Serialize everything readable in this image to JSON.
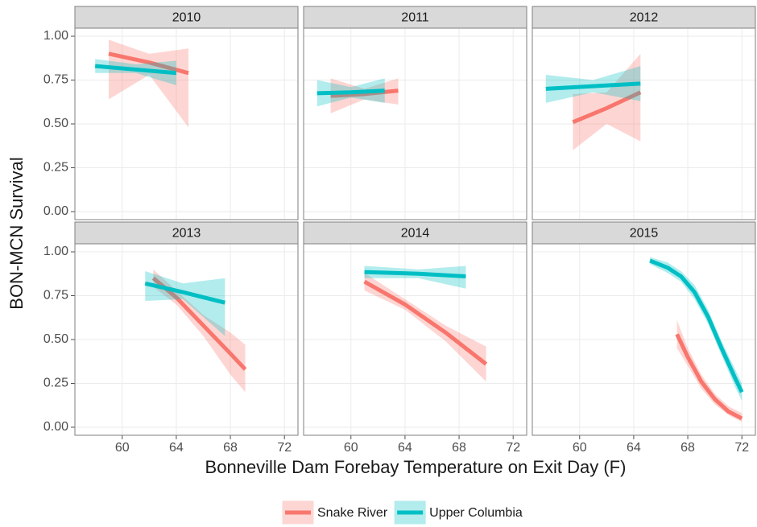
{
  "chart_data": {
    "type": "line",
    "xlabel": "Bonneville Dam Forebay Temperature on Exit Day (F)",
    "ylabel": "BON-MCN Survival",
    "xlim": [
      56.5,
      73
    ],
    "xticks": [
      60,
      64,
      68,
      72
    ],
    "ylim": [
      -0.046,
      1.046
    ],
    "yticks": [
      {
        "value": 0,
        "label": "0.00"
      },
      {
        "value": 0.25,
        "label": "0.25"
      },
      {
        "value": 0.5,
        "label": "0.50"
      },
      {
        "value": 0.75,
        "label": "0.75"
      },
      {
        "value": 1,
        "label": "1.00"
      }
    ],
    "grid": true,
    "legend": "bottom",
    "series": [
      {
        "name": "Snake River",
        "color": "#f8766d"
      },
      {
        "name": "Upper Columbia",
        "color": "#00bfc4"
      }
    ],
    "facets": [
      {
        "title": "2010",
        "lines": [
          {
            "x": [
              59,
              62,
              64.9
            ],
            "values": [
              0.9,
              0.85,
              0.79
            ],
            "lower": [
              0.64,
              0.78,
              0.48
            ],
            "upper": [
              0.98,
              0.9,
              0.93
            ]
          },
          {
            "x": [
              58,
              61,
              64
            ],
            "values": [
              0.83,
              0.81,
              0.79
            ],
            "lower": [
              0.79,
              0.79,
              0.72
            ],
            "upper": [
              0.87,
              0.84,
              0.86
            ]
          }
        ]
      },
      {
        "title": "2011",
        "lines": [
          {
            "x": [
              58.5,
              61,
              63.5
            ],
            "values": [
              0.66,
              0.67,
              0.69
            ],
            "lower": [
              0.56,
              0.64,
              0.61
            ],
            "upper": [
              0.76,
              0.7,
              0.76
            ]
          },
          {
            "x": [
              57.5,
              60,
              62.5
            ],
            "values": [
              0.675,
              0.68,
              0.69
            ],
            "lower": [
              0.6,
              0.65,
              0.62
            ],
            "upper": [
              0.75,
              0.71,
              0.76
            ]
          }
        ]
      },
      {
        "title": "2012",
        "lines": [
          {
            "x": [
              59.5,
              62,
              64.5
            ],
            "values": [
              0.51,
              0.59,
              0.68
            ],
            "lower": [
              0.35,
              0.5,
              0.4
            ],
            "upper": [
              0.67,
              0.68,
              0.9
            ]
          },
          {
            "x": [
              57.5,
              61,
              64.5
            ],
            "values": [
              0.7,
              0.715,
              0.73
            ],
            "lower": [
              0.62,
              0.68,
              0.63
            ],
            "upper": [
              0.78,
              0.75,
              0.83
            ]
          }
        ]
      },
      {
        "title": "2013",
        "lines": [
          {
            "x": [
              62.3,
              64,
              66,
              68,
              69.1
            ],
            "values": [
              0.85,
              0.74,
              0.58,
              0.42,
              0.33
            ],
            "lower": [
              0.8,
              0.7,
              0.52,
              0.3,
              0.2
            ],
            "upper": [
              0.9,
              0.78,
              0.64,
              0.54,
              0.47
            ]
          },
          {
            "x": [
              61.7,
              64.5,
              67.6
            ],
            "values": [
              0.82,
              0.77,
              0.71
            ],
            "lower": [
              0.72,
              0.73,
              0.52
            ],
            "upper": [
              0.89,
              0.82,
              0.85
            ]
          }
        ]
      },
      {
        "title": "2014",
        "lines": [
          {
            "x": [
              61,
              64,
              67,
              70
            ],
            "values": [
              0.83,
              0.7,
              0.54,
              0.36
            ],
            "lower": [
              0.78,
              0.67,
              0.49,
              0.26
            ],
            "upper": [
              0.88,
              0.73,
              0.58,
              0.46
            ]
          },
          {
            "x": [
              61,
              65,
              68.5
            ],
            "values": [
              0.885,
              0.875,
              0.86
            ],
            "lower": [
              0.85,
              0.85,
              0.79
            ],
            "upper": [
              0.92,
              0.9,
              0.92
            ]
          }
        ]
      },
      {
        "title": "2015",
        "lines": [
          {
            "x": [
              67.2,
              68,
              69,
              70,
              71,
              72
            ],
            "values": [
              0.53,
              0.4,
              0.26,
              0.16,
              0.09,
              0.05
            ],
            "lower": [
              0.45,
              0.35,
              0.22,
              0.13,
              0.07,
              0.03
            ],
            "upper": [
              0.61,
              0.45,
              0.3,
              0.19,
              0.12,
              0.08
            ]
          },
          {
            "x": [
              65.2,
              66.5,
              67.5,
              68.5,
              69.5,
              70.5,
              71.5,
              72
            ],
            "values": [
              0.95,
              0.91,
              0.86,
              0.77,
              0.63,
              0.45,
              0.28,
              0.2
            ],
            "lower": [
              0.93,
              0.88,
              0.83,
              0.73,
              0.59,
              0.41,
              0.23,
              0.15
            ],
            "upper": [
              0.97,
              0.94,
              0.89,
              0.81,
              0.67,
              0.49,
              0.33,
              0.25
            ]
          }
        ]
      }
    ]
  }
}
